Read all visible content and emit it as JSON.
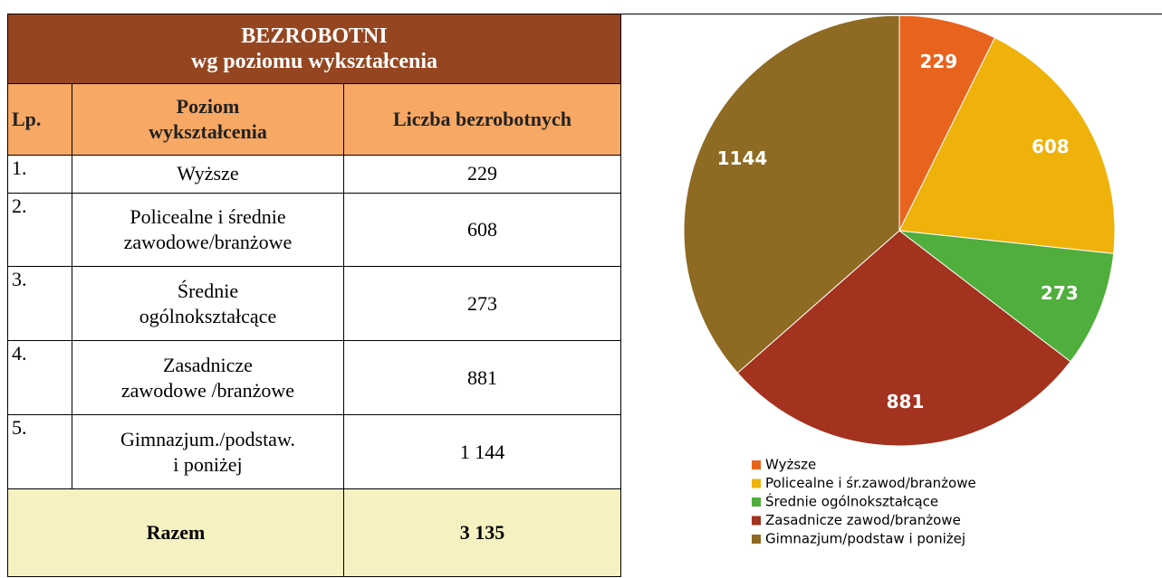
{
  "table": {
    "title": [
      "BEZROBOTNI",
      "wg poziomu wykształcenia"
    ],
    "header": [
      [
        "Lp."
      ],
      [
        "Poziom",
        "wykształcenia"
      ],
      [
        "Liczba bezrobotnych"
      ]
    ],
    "rows": [
      [
        [
          "1."
        ],
        [
          "Wyższe"
        ],
        [
          "229"
        ]
      ],
      [
        [
          "2."
        ],
        [
          "Policealne i średnie",
          "zawodowe/branżowe"
        ],
        [
          "608"
        ]
      ],
      [
        [
          "3."
        ],
        [
          "Średnie",
          "ogólnokształcące"
        ],
        [
          "273"
        ]
      ],
      [
        [
          "4."
        ],
        [
          "Zasadnicze",
          "zawodowe /branżowe"
        ],
        [
          "881"
        ]
      ],
      [
        [
          "5."
        ],
        [
          "Gimnazjum./podstaw.",
          "i poniżej"
        ],
        [
          "1 144"
        ]
      ]
    ],
    "total": {
      "label": "Razem",
      "value": "3 135"
    }
  },
  "chart_data": {
    "type": "pie",
    "categories": [
      "Wyższe",
      "Policealne i śr.zawod/branżowe",
      "Średnie ogólnokształcące",
      "Zasadnicze zawod/branżowe",
      "Gimnazjum/podstaw i poniżej"
    ],
    "values": [
      229,
      608,
      273,
      881,
      1144
    ],
    "colors": [
      "#e8641e",
      "#eeb20a",
      "#4fae3c",
      "#a3321f",
      "#8e6a22"
    ]
  }
}
